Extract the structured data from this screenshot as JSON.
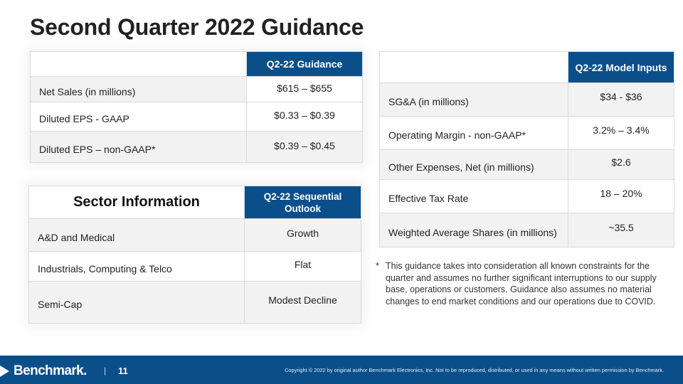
{
  "slide": {
    "title": "Second Quarter 2022 Guidance"
  },
  "guidance_table": {
    "header": "Q2-22 Guidance",
    "rows": [
      {
        "label": "Net Sales (in millions)",
        "value": "$615 – $655"
      },
      {
        "label": "Diluted EPS - GAAP",
        "value": "$0.33 – $0.39"
      },
      {
        "label": "Diluted EPS – non-GAAP*",
        "value": "$0.39 – $0.45"
      }
    ]
  },
  "sector_table": {
    "title": "Sector Information",
    "header": "Q2-22 Sequential Outlook",
    "rows": [
      {
        "label": "A&D and Medical",
        "value": "Growth"
      },
      {
        "label": "Industrials, Computing & Telco",
        "value": "Flat"
      },
      {
        "label": "Semi-Cap",
        "value": "Modest Decline"
      }
    ]
  },
  "model_table": {
    "header": "Q2-22 Model Inputs",
    "rows": [
      {
        "label": "SG&A (in millions)",
        "value": "$34 - $36"
      },
      {
        "label": "Operating Margin -  non-GAAP*",
        "value": "3.2% – 3.4%"
      },
      {
        "label": "Other Expenses, Net (in millions)",
        "value": "$2.6"
      },
      {
        "label": "Effective Tax Rate",
        "value": "18 – 20%"
      },
      {
        "label": "Weighted Average Shares (in millions)",
        "value": "~35.5"
      }
    ]
  },
  "footnote": {
    "marker": "*",
    "text": "This guidance takes into consideration all known constraints for the quarter and assumes no further significant interruptions to our supply base, operations or customers. Guidance also assumes no material changes to end market conditions and our operations due to COVID."
  },
  "footer": {
    "logo": "Benchmark.",
    "separator": "|",
    "page_number": "11",
    "copyright": "Copyright © 2022 by original author Benchmark Electronics, Inc. Not to be reproduced, distributed, or used in any means without written permission by Benchmark."
  },
  "colors": {
    "header_blue": "#0b4f8a",
    "row_shade": "#f2f2f2"
  }
}
